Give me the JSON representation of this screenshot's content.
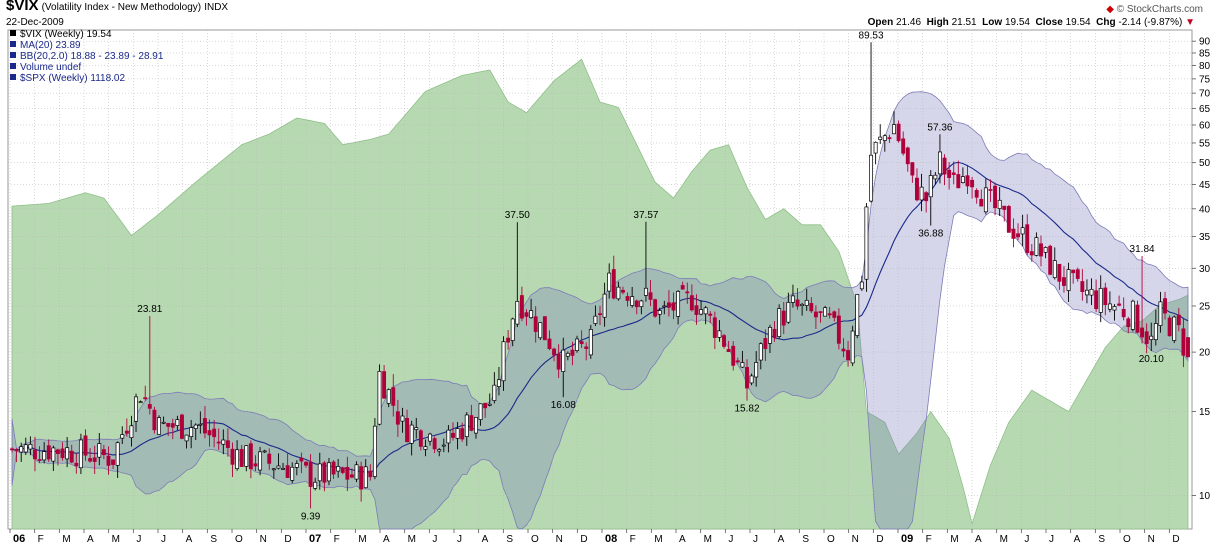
{
  "header": {
    "symbol": "$VIX",
    "name": "(Volatility Index - New Methodology)",
    "exchange": "INDX",
    "date": "22-Dec-2009",
    "open_label": "Open",
    "open": "21.46",
    "high_label": "High",
    "high": "21.51",
    "low_label": "Low",
    "low": "19.54",
    "close_label": "Close",
    "close": "19.54",
    "chg_label": "Chg",
    "chg": "-2.14 (-9.87%)",
    "logo": "© StockCharts.com"
  },
  "legend": [
    {
      "text": "$VIX (Weekly) 19.54",
      "color": "#000000"
    },
    {
      "text": "MA(20) 23.89",
      "color": "#1b2a8a"
    },
    {
      "text": "BB(20,2.0) 18.88 - 23.89 - 28.91",
      "color": "#1b2a8a"
    },
    {
      "text": "Volume undef",
      "color": "#1b2a8a"
    },
    {
      "text": "$SPX (Weekly) 1118.02",
      "color": "#1b2a8a"
    }
  ],
  "chart_data": {
    "type": "candlestick",
    "scale": "log",
    "ylim": [
      8.5,
      95
    ],
    "y_ticks": [
      10,
      15,
      20,
      25,
      30,
      35,
      40,
      45,
      50,
      55,
      60,
      65,
      70,
      75,
      80,
      85,
      90
    ],
    "x_ticks": [
      "06",
      "F",
      "M",
      "A",
      "M",
      "J",
      "J",
      "A",
      "S",
      "O",
      "N",
      "D",
      "07",
      "F",
      "M",
      "A",
      "M",
      "J",
      "J",
      "A",
      "S",
      "O",
      "N",
      "D",
      "08",
      "F",
      "M",
      "A",
      "M",
      "J",
      "J",
      "A",
      "S",
      "O",
      "N",
      "D",
      "09",
      "F",
      "M",
      "A",
      "M",
      "J",
      "J",
      "A",
      "S",
      "O",
      "N",
      "D"
    ],
    "annotations": [
      {
        "label": "23.81",
        "week": 30,
        "value": 23.81
      },
      {
        "label": "9.39",
        "week": 65,
        "value": 9.39
      },
      {
        "label": "37.50",
        "week": 110,
        "value": 37.5
      },
      {
        "label": "16.08",
        "week": 120,
        "value": 16.08
      },
      {
        "label": "37.57",
        "week": 138,
        "value": 37.57
      },
      {
        "label": "15.82",
        "week": 160,
        "value": 15.82
      },
      {
        "label": "89.53",
        "week": 187,
        "value": 89.53
      },
      {
        "label": "57.36",
        "week": 202,
        "value": 57.36
      },
      {
        "label": "36.88",
        "week": 200,
        "value": 36.88
      },
      {
        "label": "31.84",
        "week": 246,
        "value": 31.84
      },
      {
        "label": "20.10",
        "week": 248,
        "value": 20.1
      }
    ],
    "vix_close_anchors": [
      [
        0,
        12.5
      ],
      [
        10,
        12.5
      ],
      [
        22,
        12.0
      ],
      [
        28,
        16.5
      ],
      [
        32,
        14
      ],
      [
        40,
        14
      ],
      [
        50,
        12
      ],
      [
        60,
        11.5
      ],
      [
        65,
        11
      ],
      [
        72,
        11
      ],
      [
        78,
        11
      ],
      [
        80,
        18
      ],
      [
        85,
        14
      ],
      [
        95,
        13
      ],
      [
        105,
        16
      ],
      [
        110,
        26
      ],
      [
        113,
        24
      ],
      [
        120,
        19
      ],
      [
        126,
        21
      ],
      [
        130,
        28
      ],
      [
        138,
        26
      ],
      [
        141,
        24
      ],
      [
        148,
        26
      ],
      [
        154,
        22
      ],
      [
        160,
        17
      ],
      [
        166,
        23
      ],
      [
        170,
        25
      ],
      [
        174,
        24
      ],
      [
        178,
        23
      ],
      [
        182,
        20
      ],
      [
        185,
        29
      ],
      [
        187,
        52
      ],
      [
        192,
        60
      ],
      [
        196,
        45
      ],
      [
        199,
        42
      ],
      [
        202,
        50
      ],
      [
        205,
        45
      ],
      [
        208,
        48
      ],
      [
        212,
        42
      ],
      [
        217,
        37
      ],
      [
        223,
        33
      ],
      [
        228,
        29
      ],
      [
        232,
        27
      ],
      [
        236,
        26
      ],
      [
        240,
        25
      ],
      [
        244,
        24
      ],
      [
        248,
        21
      ],
      [
        250,
        24
      ],
      [
        254,
        22
      ],
      [
        256,
        19.54
      ]
    ],
    "spx_anchors": [
      [
        0,
        1285
      ],
      [
        8,
        1290
      ],
      [
        16,
        1310
      ],
      [
        20,
        1300
      ],
      [
        26,
        1230
      ],
      [
        32,
        1270
      ],
      [
        40,
        1330
      ],
      [
        50,
        1400
      ],
      [
        56,
        1420
      ],
      [
        62,
        1450
      ],
      [
        68,
        1440
      ],
      [
        72,
        1400
      ],
      [
        78,
        1410
      ],
      [
        82,
        1420
      ],
      [
        90,
        1500
      ],
      [
        98,
        1530
      ],
      [
        104,
        1540
      ],
      [
        108,
        1480
      ],
      [
        112,
        1460
      ],
      [
        118,
        1520
      ],
      [
        124,
        1560
      ],
      [
        128,
        1480
      ],
      [
        132,
        1470
      ],
      [
        136,
        1400
      ],
      [
        140,
        1330
      ],
      [
        144,
        1300
      ],
      [
        148,
        1350
      ],
      [
        152,
        1390
      ],
      [
        156,
        1400
      ],
      [
        160,
        1320
      ],
      [
        164,
        1260
      ],
      [
        168,
        1280
      ],
      [
        172,
        1250
      ],
      [
        176,
        1250
      ],
      [
        180,
        1200
      ],
      [
        184,
        1100
      ],
      [
        186,
        900
      ],
      [
        190,
        880
      ],
      [
        193,
        820
      ],
      [
        197,
        860
      ],
      [
        200,
        900
      ],
      [
        204,
        850
      ],
      [
        207,
        760
      ],
      [
        209,
        690
      ],
      [
        213,
        800
      ],
      [
        217,
        880
      ],
      [
        222,
        940
      ],
      [
        226,
        920
      ],
      [
        230,
        900
      ],
      [
        234,
        960
      ],
      [
        238,
        1020
      ],
      [
        242,
        1060
      ],
      [
        246,
        1070
      ],
      [
        250,
        1100
      ],
      [
        254,
        1110
      ],
      [
        256,
        1118.02
      ]
    ],
    "spx_ylim": [
      680,
      1600
    ],
    "colors": {
      "up": "#000000",
      "down": "#b0003a",
      "ma": "#1b2a8a",
      "bb_fill": "rgba(120,120,190,0.30)",
      "spx_fill": "#b7d9b2"
    }
  }
}
